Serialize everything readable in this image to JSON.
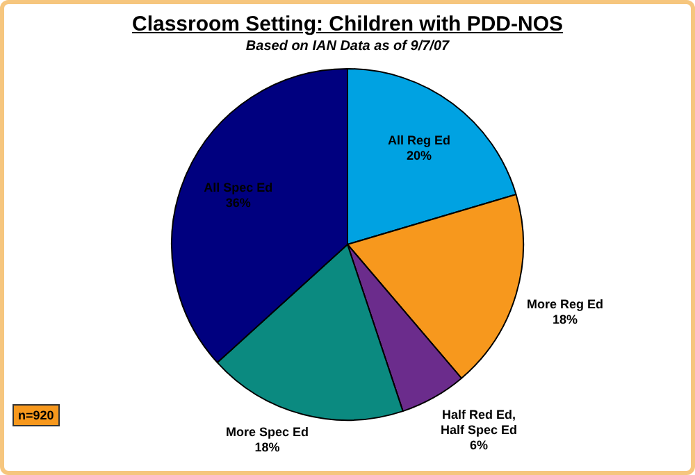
{
  "chart_data": {
    "type": "pie",
    "title": "Classroom Setting: Children with PDD-NOS",
    "subtitle": "Based on IAN Data as of 9/7/07",
    "categories": [
      "All Reg Ed",
      "More Reg Ed",
      "Half Red Ed, Half Spec Ed",
      "More Spec Ed",
      "All Spec Ed"
    ],
    "values": [
      20,
      18,
      6,
      18,
      36
    ],
    "value_labels": [
      "20%",
      "18%",
      "6%",
      "18%",
      "36%"
    ],
    "colors": [
      "#00a2e2",
      "#f7981d",
      "#6b2c8c",
      "#0b8a80",
      "#00007f"
    ],
    "legend": false,
    "annotations": [
      "n=920"
    ]
  }
}
